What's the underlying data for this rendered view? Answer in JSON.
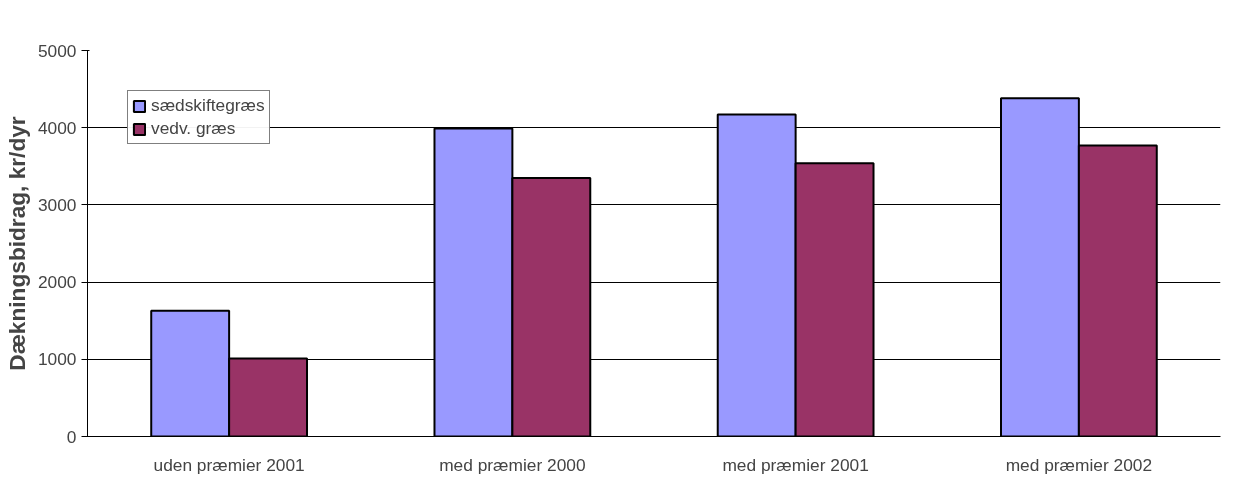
{
  "chart_data": {
    "type": "bar",
    "ylabel": "Dækningsbidrag, kr/dyr",
    "categories": [
      "uden præmier 2001",
      "med præmier 2000",
      "med præmier 2001",
      "med præmier 2002"
    ],
    "series": [
      {
        "name": "sædskiftegræs",
        "color": "#9999ff",
        "values": [
          1630,
          3990,
          4170,
          4380
        ]
      },
      {
        "name": "vedv. græs",
        "color": "#993366",
        "values": [
          1010,
          3350,
          3540,
          3770
        ]
      }
    ],
    "ylim": [
      0,
      5000
    ],
    "yticks": [
      0,
      1000,
      2000,
      3000,
      4000,
      5000
    ],
    "grid": "y",
    "legend": "top left"
  }
}
